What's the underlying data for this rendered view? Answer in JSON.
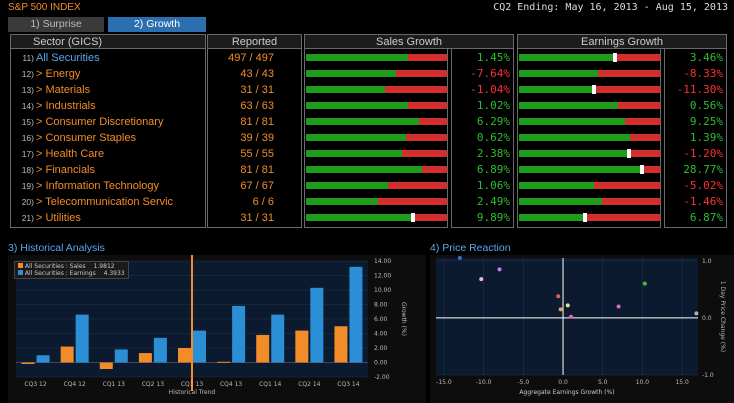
{
  "header": {
    "app_title": "S&P 500 INDEX",
    "period": "CQ2 Ending: May 16, 2013 - Aug 15, 2013",
    "tabs": [
      {
        "label": "1) Surprise"
      },
      {
        "label": "2) Growth"
      }
    ]
  },
  "table": {
    "col_sector": "Sector (GICS)",
    "col_reported": "Reported",
    "col_sales": "Sales Growth",
    "col_earnings": "Earnings Growth",
    "rows": [
      {
        "num": "11)",
        "name": "All Securities",
        "reported": "497 / 497",
        "sales": "1.45%",
        "earnings": "3.46%"
      },
      {
        "num": "12)",
        "name": "> Energy",
        "reported": "43 / 43",
        "sales": "-7.64%",
        "earnings": "-8.33%"
      },
      {
        "num": "13)",
        "name": "> Materials",
        "reported": "31 / 31",
        "sales": "-1.04%",
        "earnings": "-11.30%"
      },
      {
        "num": "14)",
        "name": "> Industrials",
        "reported": "63 / 63",
        "sales": "1.02%",
        "earnings": "0.56%"
      },
      {
        "num": "15)",
        "name": "> Consumer Discretionary",
        "reported": "81 / 81",
        "sales": "6.29%",
        "earnings": "9.25%"
      },
      {
        "num": "16)",
        "name": "> Consumer Staples",
        "reported": "39 / 39",
        "sales": "0.62%",
        "earnings": "1.39%"
      },
      {
        "num": "17)",
        "name": "> Health Care",
        "reported": "55 / 55",
        "sales": "2.38%",
        "earnings": "-1.20%"
      },
      {
        "num": "18)",
        "name": "> Financials",
        "reported": "81 / 81",
        "sales": "6.89%",
        "earnings": "28.77%"
      },
      {
        "num": "19)",
        "name": "> Information Technology",
        "reported": "67 / 67",
        "sales": "1.06%",
        "earnings": "-5.02%"
      },
      {
        "num": "20)",
        "name": "> Telecommunication Servic",
        "reported": "6 / 6",
        "sales": "2.49%",
        "earnings": "-1.46%"
      },
      {
        "num": "21)",
        "name": "> Utilities",
        "reported": "31 / 31",
        "sales": "9.89%",
        "earnings": "6.87%"
      }
    ],
    "sales_bars": [
      {
        "green": 0.72,
        "marker": null
      },
      {
        "green": 0.64,
        "marker": null
      },
      {
        "green": 0.56,
        "marker": null
      },
      {
        "green": 0.72,
        "marker": null
      },
      {
        "green": 0.8,
        "marker": null
      },
      {
        "green": 0.71,
        "marker": null
      },
      {
        "green": 0.68,
        "marker": null
      },
      {
        "green": 0.82,
        "marker": null
      },
      {
        "green": 0.58,
        "marker": null
      },
      {
        "green": 0.51,
        "marker": null
      },
      {
        "green": 0.76,
        "marker": 0.76
      }
    ],
    "earn_bars": [
      {
        "green": 0.68,
        "marker": 0.68
      },
      {
        "green": 0.56,
        "marker": null
      },
      {
        "green": 0.53,
        "marker": 0.53
      },
      {
        "green": 0.7,
        "marker": null
      },
      {
        "green": 0.75,
        "marker": null
      },
      {
        "green": 0.79,
        "marker": null
      },
      {
        "green": 0.78,
        "marker": 0.78
      },
      {
        "green": 0.87,
        "marker": 0.87
      },
      {
        "green": 0.53,
        "marker": null
      },
      {
        "green": 0.59,
        "marker": null
      },
      {
        "green": 0.47,
        "marker": 0.47
      }
    ],
    "colors": {
      "positive": "#2ebd2e",
      "negative": "#ff3030",
      "bar_green": "#1e9c1e",
      "bar_red": "#d42d2d"
    }
  },
  "historical": {
    "title": "3) Historical Analysis",
    "legend": [
      {
        "label": "All Securities : Sales",
        "value": "1.9812",
        "color": "#f28c28"
      },
      {
        "label": "All Securities : Earnings",
        "value": "4.3933",
        "color": "#2b8fd6"
      }
    ],
    "xlabel": "Historical Trend",
    "ylabel": "Growth (%)"
  },
  "reaction": {
    "title": "4) Price Reaction",
    "xlabel": "Aggregate Earnings Growth (%)",
    "ylabel": "1 Day Price Change (%)"
  },
  "chart_data": [
    {
      "type": "bar",
      "categories": [
        "CQ3 12",
        "CQ4 12",
        "CQ1 13",
        "CQ2 13",
        "CQ3 13",
        "CQ4 13",
        "CQ1 14",
        "CQ2 14",
        "CQ3 14"
      ],
      "x_tick_labels": [
        "CQ3 12",
        "CQ4 12",
        "CQ1 13",
        "CQ2 13",
        "CQ3 13",
        "CQ4 13",
        "CQ1 14",
        "CQ2 14",
        "CQ3 14"
      ],
      "series": [
        {
          "name": "All Securities : Sales",
          "values": [
            -0.2,
            2.2,
            -0.9,
            1.3,
            2.0,
            0.1,
            3.8,
            4.4,
            5.0
          ]
        },
        {
          "name": "All Securities : Earnings",
          "values": [
            1.0,
            6.6,
            1.8,
            3.4,
            4.4,
            7.8,
            6.6,
            10.3,
            13.2
          ]
        }
      ],
      "ylim": [
        -2,
        14
      ],
      "yticks": [
        "14.00",
        "12.00",
        "10.00",
        "8.00",
        "6.00",
        "4.00",
        "2.00",
        "0.00",
        "-2.00"
      ],
      "highlight_category": "CQ3 13",
      "xlabel": "Historical Trend",
      "ylabel": "Growth (%)"
    },
    {
      "type": "scatter",
      "xlim": [
        -16,
        17
      ],
      "ylim": [
        -1.0,
        1.05
      ],
      "xticks": [
        "-15.0",
        "-10.0",
        "-5.0",
        "0.0",
        "5.0",
        "10.0",
        "15.0"
      ],
      "yticks": [
        "1.0",
        "0.0",
        "-1.0"
      ],
      "points": [
        {
          "x": -13.0,
          "y": 1.05,
          "color": "#3b6fd8"
        },
        {
          "x": -10.3,
          "y": 0.68,
          "color": "#e8b8e8"
        },
        {
          "x": -8.0,
          "y": 0.85,
          "color": "#c080e0"
        },
        {
          "x": -0.6,
          "y": 0.38,
          "color": "#e06060"
        },
        {
          "x": -0.3,
          "y": 0.15,
          "color": "#e8a050"
        },
        {
          "x": 0.6,
          "y": 0.22,
          "color": "#e0e0a0"
        },
        {
          "x": 1.0,
          "y": 0.02,
          "color": "#f060c0"
        },
        {
          "x": 7.0,
          "y": 0.2,
          "color": "#d070d0"
        },
        {
          "x": 10.3,
          "y": 0.6,
          "color": "#40c040"
        },
        {
          "x": 16.8,
          "y": 0.08,
          "color": "#b0b0b0"
        }
      ],
      "xlabel": "Aggregate Earnings Growth (%)",
      "ylabel": "1 Day Price Change (%)"
    }
  ]
}
